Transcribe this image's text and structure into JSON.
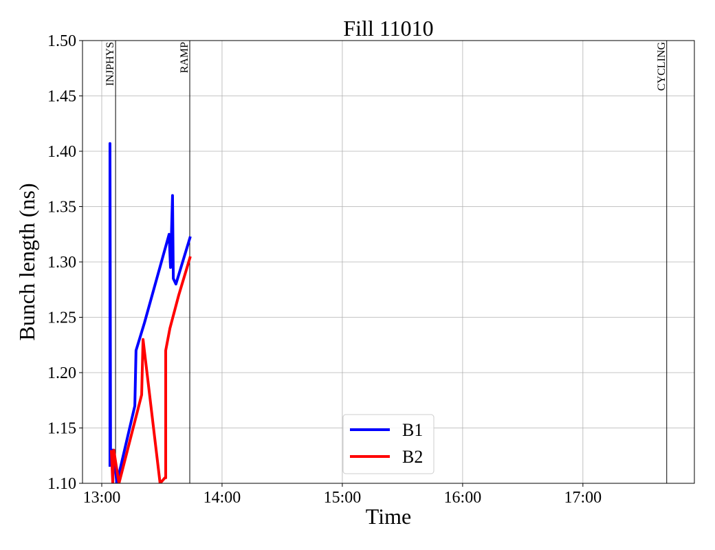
{
  "chart_data": {
    "type": "line",
    "title": "Fill 11010",
    "x_label": "Time",
    "y_label": "Bunch length (ns)",
    "xlim": [
      "12:50:24",
      "17:55:36"
    ],
    "xticks": [
      "13:00",
      "14:00",
      "15:00",
      "16:00",
      "17:00"
    ],
    "ylim": [
      1.1,
      1.5
    ],
    "yticks": [
      {
        "value": 1.1,
        "label": "1.10"
      },
      {
        "value": 1.15,
        "label": "1.15"
      },
      {
        "value": 1.2,
        "label": "1.20"
      },
      {
        "value": 1.25,
        "label": "1.25"
      },
      {
        "value": 1.3,
        "label": "1.30"
      },
      {
        "value": 1.35,
        "label": "1.35"
      },
      {
        "value": 1.4,
        "label": "1.40"
      },
      {
        "value": 1.45,
        "label": "1.45"
      },
      {
        "value": 1.5,
        "label": "1.50"
      }
    ],
    "grid": true,
    "legend": "lower center",
    "markers": [
      {
        "label": "INJPHYS",
        "x": "13:06:54"
      },
      {
        "label": "RAMP",
        "x": "13:43:54"
      },
      {
        "label": "CYCLING",
        "x": "17:41:48"
      }
    ],
    "series": [
      {
        "name": "B1",
        "color": "#0000ff",
        "x": [
          "13:04:06",
          "13:04:06",
          "13:04:24",
          "13:06:00",
          "13:07:30",
          "13:16:30",
          "13:17:06",
          "13:21:18",
          "13:33:36",
          "13:34:18",
          "13:35:18",
          "13:35:42",
          "13:37:00",
          "13:44:12"
        ],
        "values": [
          1.115,
          1.407,
          1.13,
          1.13,
          1.1,
          1.17,
          1.22,
          1.245,
          1.325,
          1.295,
          1.36,
          1.285,
          1.28,
          1.323
        ]
      },
      {
        "name": "B2",
        "color": "#ff0000",
        "x": [
          "13:04:48",
          "13:05:30",
          "13:06:00",
          "13:08:36",
          "13:19:54",
          "13:20:36",
          "13:29:06",
          "13:31:30",
          "13:31:54",
          "13:31:54",
          "13:34:00",
          "13:38:24",
          "13:44:12"
        ],
        "values": [
          1.13,
          1.1,
          1.13,
          1.1,
          1.18,
          1.23,
          1.1,
          1.105,
          1.105,
          1.22,
          1.24,
          1.27,
          1.305
        ]
      }
    ]
  }
}
